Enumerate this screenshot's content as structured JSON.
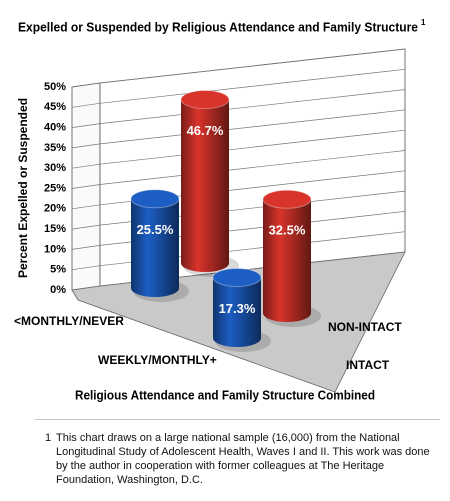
{
  "chart_data": {
    "type": "bar3d",
    "title": "Expelled or Suspended by Religious Attendance and Family Structure",
    "title_note": "1",
    "y_label": "Percent Expelled or Suspended",
    "x_label": "Religious Attendance and Family Structure Combined",
    "categories": [
      "<MONTHLY/NEVER",
      "WEEKLY/MONTHLY+"
    ],
    "series": [
      {
        "name": "INTACT",
        "color": "#1c5ec4",
        "values": [
          25.5,
          17.3
        ],
        "value_labels": [
          "25.5%",
          "17.3%"
        ]
      },
      {
        "name": "NON-INTACT",
        "color": "#d9342b",
        "values": [
          46.7,
          32.5
        ],
        "value_labels": [
          "46.7%",
          "32.5%"
        ]
      }
    ],
    "ylim": [
      0,
      50
    ],
    "yticks": [
      {
        "value": 0,
        "label": "0%"
      },
      {
        "value": 5,
        "label": "5%"
      },
      {
        "value": 10,
        "label": "10%"
      },
      {
        "value": 15,
        "label": "15%"
      },
      {
        "value": 20,
        "label": "20%"
      },
      {
        "value": 25,
        "label": "25%"
      },
      {
        "value": 30,
        "label": "30%"
      },
      {
        "value": 35,
        "label": "35%"
      },
      {
        "value": 40,
        "label": "40%"
      },
      {
        "value": 45,
        "label": "45%"
      },
      {
        "value": 50,
        "label": "50%"
      }
    ],
    "grid": true
  },
  "footnote": {
    "mark": "1",
    "text": "This chart draws on a large national sample (16,000) from the National Longitudinal Study of Adolescent Health, Waves I and II. This work was done by the author in cooperation with former colleagues at The Heritage Foundation, Washington, D.C."
  }
}
